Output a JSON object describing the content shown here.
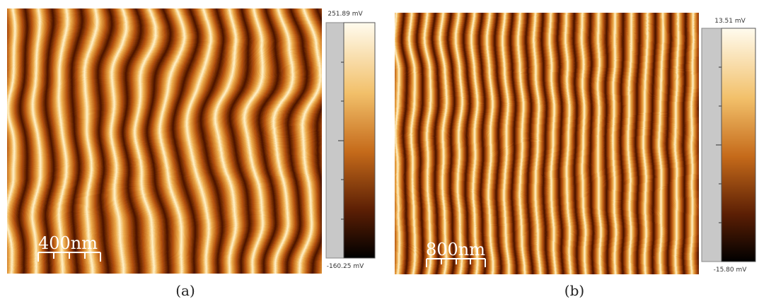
{
  "panels": [
    {
      "label": "(a)",
      "scale_bar": "400nm",
      "colorbar": {
        "max": "251.89 mV",
        "min": "-160.25 mV"
      }
    },
    {
      "label": "(b)",
      "scale_bar": "800nm",
      "colorbar": {
        "max": "13.51 mV",
        "min": "-15.80 mV"
      }
    }
  ]
}
